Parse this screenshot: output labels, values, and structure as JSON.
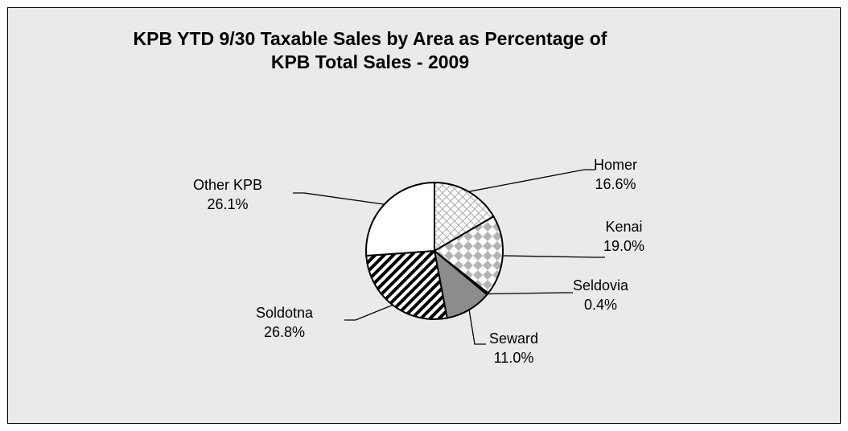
{
  "chart_data": {
    "type": "pie",
    "title_lines": [
      "KPB YTD 9/30 Taxable Sales by Area as Percentage of",
      "KPB Total Sales - 2009"
    ],
    "slices": [
      {
        "name": "Homer",
        "value": 16.6,
        "label": "16.6%",
        "fill": "cross-light"
      },
      {
        "name": "Kenai",
        "value": 19.0,
        "label": "19.0%",
        "fill": "checker"
      },
      {
        "name": "Seldovia",
        "value": 0.4,
        "label": "0.4%",
        "fill": "solid-black"
      },
      {
        "name": "Seward",
        "value": 11.0,
        "label": "11.0%",
        "fill": "solid-gray"
      },
      {
        "name": "Soldotna",
        "value": 26.8,
        "label": "26.8%",
        "fill": "diagonal-stripes"
      },
      {
        "name": "Other KPB",
        "value": 26.1,
        "label": "26.1%",
        "fill": "white"
      }
    ],
    "colors": {
      "background": "#eaeaea",
      "outline": "#000000",
      "gray": "#8c8c8c",
      "pattern_gray": "#b4b4b4"
    }
  }
}
